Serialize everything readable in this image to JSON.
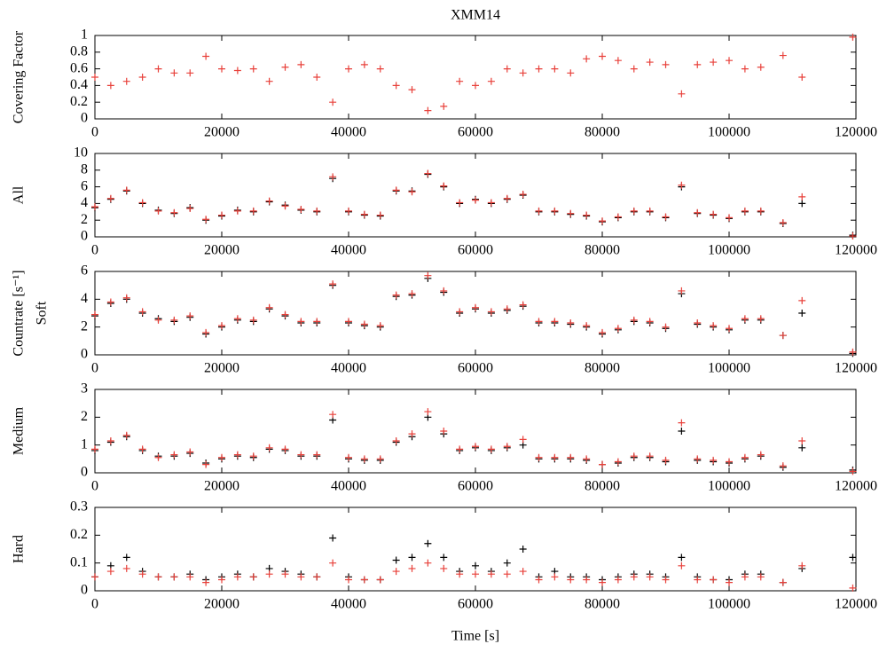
{
  "chart_data": [
    {
      "type": "scatter",
      "title": "XMM14",
      "ylabel": "Covering Factor",
      "x": [
        0,
        2500,
        5000,
        7500,
        10000,
        12500,
        15000,
        17500,
        20000,
        22500,
        25000,
        27500,
        30000,
        32500,
        35000,
        37500,
        40000,
        42500,
        45000,
        47500,
        50000,
        52500,
        55000,
        57500,
        60000,
        62500,
        65000,
        67500,
        70000,
        72500,
        75000,
        77500,
        80000,
        82500,
        85000,
        87500,
        90000,
        92500,
        95000,
        97500,
        100000,
        102500,
        105000,
        108500,
        111500,
        119500
      ],
      "series": [
        {
          "color": "#e8403a",
          "values": [
            0.5,
            0.4,
            0.45,
            0.5,
            0.6,
            0.55,
            0.55,
            0.75,
            0.6,
            0.58,
            0.6,
            0.45,
            0.62,
            0.65,
            0.5,
            0.2,
            0.6,
            0.65,
            0.6,
            0.4,
            0.35,
            0.1,
            0.15,
            0.45,
            0.4,
            0.45,
            0.6,
            0.55,
            0.6,
            0.6,
            0.55,
            0.72,
            0.75,
            0.7,
            0.6,
            0.68,
            0.65,
            0.3,
            0.65,
            0.68,
            0.7,
            0.6,
            0.62,
            0.76,
            0.5,
            0.98
          ]
        }
      ],
      "xlim": [
        0,
        120000
      ],
      "xticks": [
        0,
        20000,
        40000,
        60000,
        80000,
        100000,
        120000
      ],
      "ylim": [
        0,
        1
      ],
      "yticks": [
        0,
        0.2,
        0.4,
        0.6,
        0.8,
        1
      ]
    },
    {
      "type": "scatter",
      "ylabel": "All",
      "x": [
        0,
        2500,
        5000,
        7500,
        10000,
        12500,
        15000,
        17500,
        20000,
        22500,
        25000,
        27500,
        30000,
        32500,
        35000,
        37500,
        40000,
        42500,
        45000,
        47500,
        50000,
        52500,
        55000,
        57500,
        60000,
        62500,
        65000,
        67500,
        70000,
        72500,
        75000,
        77500,
        80000,
        82500,
        85000,
        87500,
        90000,
        92500,
        95000,
        97500,
        100000,
        102500,
        105000,
        108500,
        111500,
        119500
      ],
      "series": [
        {
          "color": "#000000",
          "values": [
            3.5,
            4.5,
            5.5,
            4.0,
            3.2,
            2.8,
            3.5,
            2.0,
            2.5,
            3.2,
            3.0,
            4.2,
            3.8,
            3.2,
            3.0,
            7.0,
            3.0,
            2.6,
            2.5,
            5.5,
            5.5,
            7.5,
            6.0,
            4.0,
            4.5,
            4.0,
            4.5,
            5.0,
            3.0,
            3.0,
            2.7,
            2.5,
            1.8,
            2.3,
            3.0,
            3.0,
            2.3,
            6.0,
            2.8,
            2.6,
            2.2,
            3.0,
            3.0,
            1.6,
            4.0,
            0.2
          ]
        },
        {
          "color": "#e8403a",
          "values": [
            3.6,
            4.6,
            5.6,
            4.1,
            3.1,
            2.9,
            3.4,
            2.1,
            2.6,
            3.1,
            3.1,
            4.3,
            3.7,
            3.3,
            3.1,
            7.2,
            3.1,
            2.7,
            2.6,
            5.6,
            5.4,
            7.6,
            6.1,
            4.1,
            4.4,
            4.1,
            4.6,
            5.1,
            3.1,
            3.1,
            2.8,
            2.6,
            1.9,
            2.4,
            3.1,
            3.1,
            2.4,
            6.2,
            2.9,
            2.7,
            2.3,
            3.1,
            3.1,
            1.7,
            4.8,
            0.1
          ]
        }
      ],
      "xlim": [
        0,
        120000
      ],
      "xticks": [
        0,
        20000,
        40000,
        60000,
        80000,
        100000,
        120000
      ],
      "ylim": [
        0,
        10
      ],
      "yticks": [
        0,
        2,
        4,
        6,
        8,
        10
      ]
    },
    {
      "type": "scatter",
      "ylabel": "Soft",
      "group_label": "Countrate [s⁻¹]",
      "x": [
        0,
        2500,
        5000,
        7500,
        10000,
        12500,
        15000,
        17500,
        20000,
        22500,
        25000,
        27500,
        30000,
        32500,
        35000,
        37500,
        40000,
        42500,
        45000,
        47500,
        50000,
        52500,
        55000,
        57500,
        60000,
        62500,
        65000,
        67500,
        70000,
        72500,
        75000,
        77500,
        80000,
        82500,
        85000,
        87500,
        90000,
        92500,
        95000,
        97500,
        100000,
        102500,
        105000,
        108500,
        111500,
        119500
      ],
      "series": [
        {
          "color": "#000000",
          "values": [
            2.8,
            3.7,
            4.0,
            3.0,
            2.6,
            2.4,
            2.7,
            1.5,
            2.0,
            2.5,
            2.4,
            3.3,
            2.8,
            2.3,
            2.3,
            5.0,
            2.3,
            2.1,
            2.0,
            4.2,
            4.3,
            5.5,
            4.5,
            3.0,
            3.3,
            3.0,
            3.2,
            3.5,
            2.3,
            2.3,
            2.2,
            2.0,
            1.5,
            1.8,
            2.4,
            2.3,
            1.9,
            4.4,
            2.2,
            2.0,
            1.8,
            2.5,
            2.5,
            1.4,
            3.0,
            0.1
          ]
        },
        {
          "color": "#e8403a",
          "values": [
            2.9,
            3.8,
            4.1,
            3.1,
            2.5,
            2.5,
            2.8,
            1.6,
            2.1,
            2.6,
            2.5,
            3.4,
            2.9,
            2.4,
            2.4,
            5.1,
            2.4,
            2.2,
            2.1,
            4.3,
            4.4,
            5.7,
            4.6,
            3.1,
            3.4,
            3.1,
            3.3,
            3.6,
            2.4,
            2.4,
            2.3,
            2.1,
            1.6,
            1.9,
            2.5,
            2.4,
            2.0,
            4.6,
            2.3,
            2.1,
            1.9,
            2.6,
            2.6,
            1.4,
            3.9,
            0.2
          ]
        }
      ],
      "xlim": [
        0,
        120000
      ],
      "xticks": [
        0,
        20000,
        40000,
        60000,
        80000,
        100000,
        120000
      ],
      "ylim": [
        0,
        6
      ],
      "yticks": [
        0,
        2,
        4,
        6
      ]
    },
    {
      "type": "scatter",
      "ylabel": "Medium",
      "x": [
        0,
        2500,
        5000,
        7500,
        10000,
        12500,
        15000,
        17500,
        20000,
        22500,
        25000,
        27500,
        30000,
        32500,
        35000,
        37500,
        40000,
        42500,
        45000,
        47500,
        50000,
        52500,
        55000,
        57500,
        60000,
        62500,
        65000,
        67500,
        70000,
        72500,
        75000,
        77500,
        80000,
        82500,
        85000,
        87500,
        90000,
        92500,
        95000,
        97500,
        100000,
        102500,
        105000,
        108500,
        111500,
        119500
      ],
      "series": [
        {
          "color": "#000000",
          "values": [
            0.8,
            1.1,
            1.3,
            0.8,
            0.6,
            0.6,
            0.7,
            0.35,
            0.5,
            0.6,
            0.55,
            0.85,
            0.8,
            0.6,
            0.6,
            1.9,
            0.5,
            0.45,
            0.45,
            1.1,
            1.3,
            2.0,
            1.4,
            0.8,
            0.9,
            0.8,
            0.9,
            1.0,
            0.5,
            0.5,
            0.5,
            0.45,
            0.3,
            0.35,
            0.55,
            0.55,
            0.4,
            1.5,
            0.45,
            0.4,
            0.35,
            0.5,
            0.6,
            0.2,
            0.9,
            0.1
          ]
        },
        {
          "color": "#e8403a",
          "values": [
            0.85,
            1.15,
            1.35,
            0.85,
            0.55,
            0.65,
            0.75,
            0.3,
            0.55,
            0.65,
            0.6,
            0.9,
            0.85,
            0.65,
            0.65,
            2.1,
            0.55,
            0.5,
            0.5,
            1.15,
            1.4,
            2.2,
            1.5,
            0.85,
            0.95,
            0.85,
            0.95,
            1.2,
            0.55,
            0.55,
            0.55,
            0.5,
            0.3,
            0.4,
            0.6,
            0.6,
            0.45,
            1.8,
            0.5,
            0.45,
            0.4,
            0.55,
            0.65,
            0.25,
            1.15,
            0.05
          ]
        }
      ],
      "xlim": [
        0,
        120000
      ],
      "xticks": [
        0,
        20000,
        40000,
        60000,
        80000,
        100000,
        120000
      ],
      "ylim": [
        0,
        3
      ],
      "yticks": [
        0,
        1,
        2,
        3
      ]
    },
    {
      "type": "scatter",
      "ylabel": "Hard",
      "xlabel": "Time [s]",
      "x": [
        0,
        2500,
        5000,
        7500,
        10000,
        12500,
        15000,
        17500,
        20000,
        22500,
        25000,
        27500,
        30000,
        32500,
        35000,
        37500,
        40000,
        42500,
        45000,
        47500,
        50000,
        52500,
        55000,
        57500,
        60000,
        62500,
        65000,
        67500,
        70000,
        72500,
        75000,
        77500,
        80000,
        82500,
        85000,
        87500,
        90000,
        92500,
        95000,
        97500,
        100000,
        102500,
        105000,
        108500,
        111500,
        119500
      ],
      "series": [
        {
          "color": "#000000",
          "values": [
            0.05,
            0.09,
            0.12,
            0.07,
            0.05,
            0.05,
            0.06,
            0.04,
            0.05,
            0.06,
            0.05,
            0.08,
            0.07,
            0.06,
            0.05,
            0.19,
            0.05,
            0.04,
            0.04,
            0.11,
            0.12,
            0.17,
            0.12,
            0.07,
            0.09,
            0.07,
            0.1,
            0.15,
            0.05,
            0.07,
            0.05,
            0.05,
            0.04,
            0.05,
            0.06,
            0.06,
            0.05,
            0.12,
            0.05,
            0.04,
            0.04,
            0.06,
            0.06,
            0.03,
            0.08,
            0.12
          ]
        },
        {
          "color": "#e8403a",
          "values": [
            0.05,
            0.07,
            0.08,
            0.06,
            0.05,
            0.05,
            0.05,
            0.03,
            0.04,
            0.05,
            0.05,
            0.06,
            0.06,
            0.05,
            0.05,
            0.1,
            0.04,
            0.04,
            0.04,
            0.07,
            0.08,
            0.1,
            0.08,
            0.06,
            0.06,
            0.06,
            0.06,
            0.07,
            0.04,
            0.05,
            0.04,
            0.04,
            0.03,
            0.04,
            0.05,
            0.05,
            0.04,
            0.09,
            0.04,
            0.04,
            0.03,
            0.05,
            0.05,
            0.03,
            0.09,
            0.01
          ]
        }
      ],
      "xlim": [
        0,
        120000
      ],
      "xticks": [
        0,
        20000,
        40000,
        60000,
        80000,
        100000,
        120000
      ],
      "ylim": [
        0,
        0.3
      ],
      "yticks": [
        0,
        0.1,
        0.2,
        0.3
      ]
    }
  ]
}
